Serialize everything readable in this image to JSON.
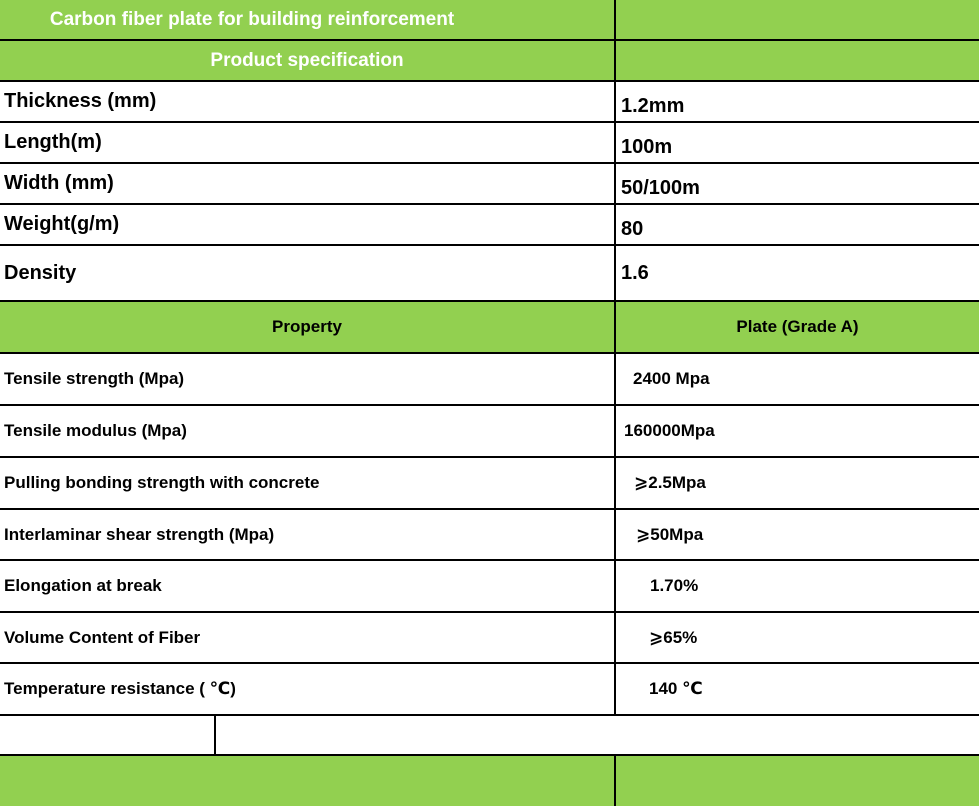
{
  "header": {
    "title": "Carbon fiber plate for building reinforcement",
    "subtitle": "Product specification"
  },
  "specifications": [
    {
      "label": "Thickness (mm)",
      "value": "1.2mm"
    },
    {
      "label": "Length(m)",
      "value": "100m"
    },
    {
      "label": "Width (mm)",
      "value": "50/100m"
    },
    {
      "label": "Weight(g/m)",
      "value": "80"
    },
    {
      "label": "Density",
      "value": "1.6"
    }
  ],
  "property_table": {
    "columns": [
      "Property",
      "Plate (Grade A)"
    ],
    "rows": [
      {
        "property": "Tensile strength (Mpa)",
        "value": "2400 Mpa"
      },
      {
        "property": "Tensile modulus (Mpa)",
        "value": "160000Mpa"
      },
      {
        "property": "Pulling bonding strength with concrete",
        "value": "⩾2.5Mpa"
      },
      {
        "property": "Interlaminar shear strength (Mpa)",
        "value": "⩾50Mpa"
      },
      {
        "property": "Elongation at break",
        "value": "1.70%"
      },
      {
        "property": "Volume Content of Fiber",
        "value": "⩾65%"
      },
      {
        "property": "Temperature resistance ( ℃)",
        "value": "140 ℃"
      }
    ]
  },
  "colors": {
    "header_green": "#92d050",
    "border": "#000000"
  }
}
